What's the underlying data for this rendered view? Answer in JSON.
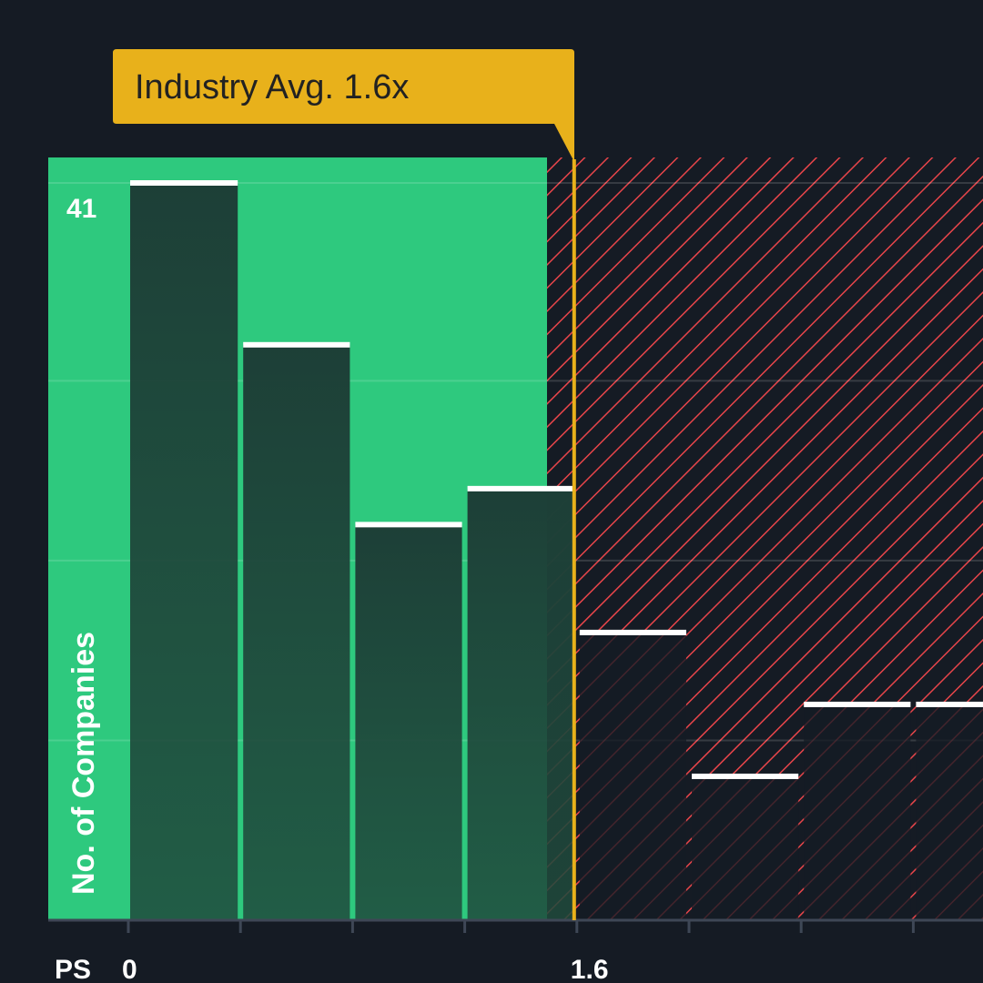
{
  "chart_data": {
    "type": "bar",
    "xlabel": "PS",
    "ylabel": "No. of Companies",
    "ylim": [
      0,
      41
    ],
    "y_ticks": [
      0,
      10,
      20,
      30,
      41
    ],
    "y_tick_labels": [
      {
        "value": 41,
        "label": "41"
      }
    ],
    "bin_width": 0.4,
    "bin_start": 0,
    "x_tick_labels": [
      {
        "value": 0,
        "label": "0"
      },
      {
        "value": 1.6,
        "label": "1.6"
      }
    ],
    "bins_left_edges": [
      0,
      0.4,
      0.8,
      1.2,
      1.6,
      2.0,
      2.4,
      2.8
    ],
    "values": [
      41,
      32,
      22,
      24,
      16,
      8,
      12,
      12
    ],
    "x_visible_max": 3.05,
    "industry_avg": {
      "value": 1.6,
      "label": "Industry Avg. 1.6x"
    },
    "colors": {
      "background": "#151b24",
      "good_zone": "#2ec97e",
      "bad_zone_hatch": "#e8454a",
      "bar_fill": "#1f4a3c",
      "bar_top": "#ffffff",
      "avg_marker": "#e8b11b",
      "axis": "#3e4756",
      "label_text": "#ffffff",
      "avg_label_text": "#222222"
    }
  }
}
